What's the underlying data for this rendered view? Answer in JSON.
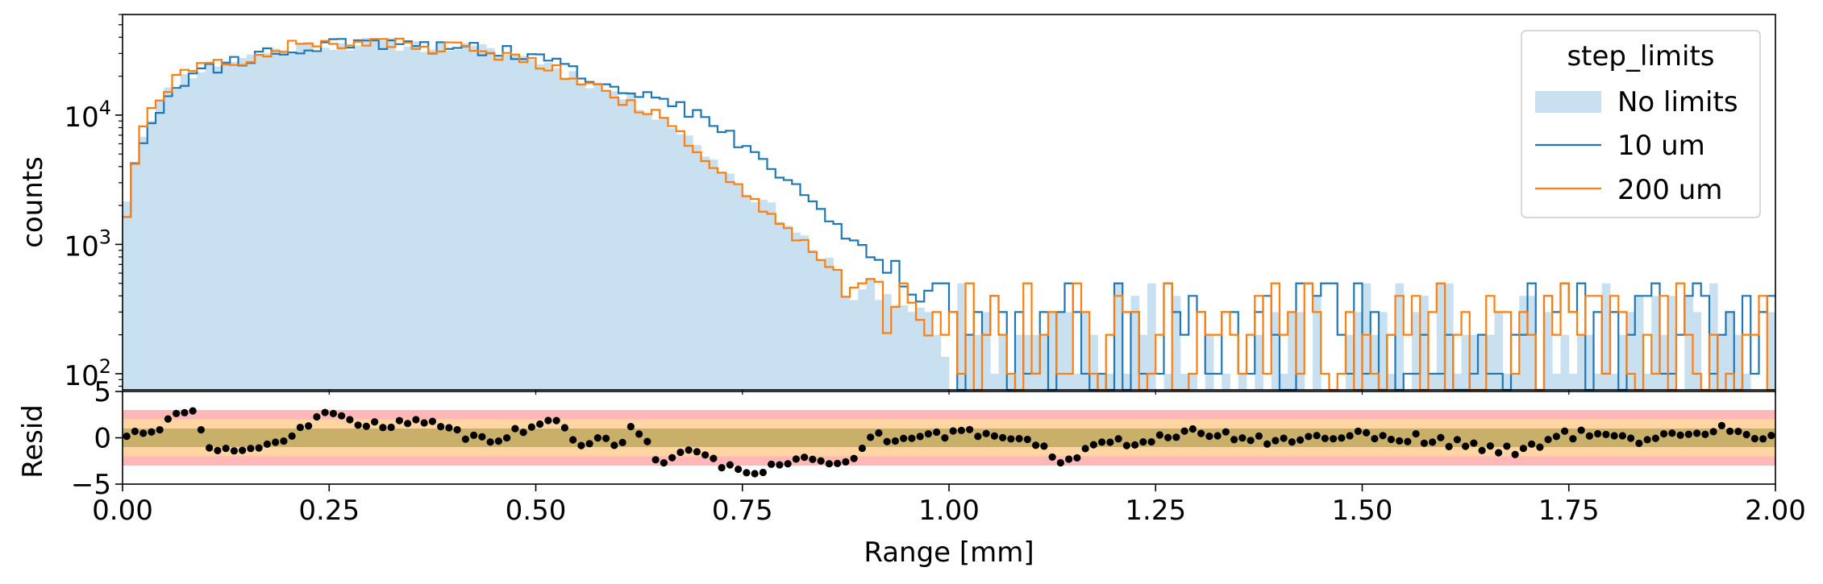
{
  "chart_data": [
    {
      "type": "histogram",
      "panel": "main",
      "ylabel": "counts",
      "yscale": "log",
      "ylim": [
        75,
        60000
      ],
      "xlim": [
        0,
        2
      ],
      "y_ticks": [
        {
          "value": 100,
          "base": "10",
          "exp": "2"
        },
        {
          "value": 1000,
          "base": "10",
          "exp": "3"
        },
        {
          "value": 10000,
          "base": "10",
          "exp": "4"
        }
      ],
      "legend": {
        "title": "step_limits",
        "position": "top-right"
      },
      "bin_width": 0.01,
      "series": [
        {
          "name": "No limits",
          "style": "filled",
          "color": "#c8e0f0",
          "profile": [
            [
              0,
              1500
            ],
            [
              0.01,
              3500
            ],
            [
              0.02,
              5500
            ],
            [
              0.03,
              9000
            ],
            [
              0.05,
              14000
            ],
            [
              0.07,
              19000
            ],
            [
              0.1,
              24000
            ],
            [
              0.15,
              28000
            ],
            [
              0.2,
              33000
            ],
            [
              0.25,
              35000
            ],
            [
              0.3,
              36000
            ],
            [
              0.35,
              35000
            ],
            [
              0.4,
              34000
            ],
            [
              0.45,
              31000
            ],
            [
              0.5,
              27000
            ],
            [
              0.55,
              20000
            ],
            [
              0.6,
              14500
            ],
            [
              0.65,
              10000
            ],
            [
              0.7,
              5500
            ],
            [
              0.75,
              2800
            ],
            [
              0.8,
              1600
            ],
            [
              0.85,
              750
            ],
            [
              0.9,
              430
            ],
            [
              0.95,
              300
            ],
            [
              1.0,
              200
            ],
            [
              2.0,
              160
            ]
          ]
        },
        {
          "name": "10 um",
          "style": "step",
          "color": "#1f77b4",
          "profile": [
            [
              0,
              1000
            ],
            [
              0.01,
              3000
            ],
            [
              0.02,
              5000
            ],
            [
              0.03,
              8500
            ],
            [
              0.05,
              13000
            ],
            [
              0.07,
              17000
            ],
            [
              0.1,
              22000
            ],
            [
              0.15,
              27000
            ],
            [
              0.2,
              33000
            ],
            [
              0.25,
              35000
            ],
            [
              0.3,
              35000
            ],
            [
              0.35,
              34000
            ],
            [
              0.4,
              33000
            ],
            [
              0.45,
              32000
            ],
            [
              0.5,
              28000
            ],
            [
              0.55,
              22000
            ],
            [
              0.6,
              17000
            ],
            [
              0.65,
              13500
            ],
            [
              0.7,
              9500
            ],
            [
              0.75,
              6000
            ],
            [
              0.8,
              3500
            ],
            [
              0.85,
              1700
            ],
            [
              0.9,
              900
            ],
            [
              0.95,
              450
            ],
            [
              1.0,
              250
            ],
            [
              2.0,
              170
            ]
          ]
        },
        {
          "name": "200 um",
          "style": "step",
          "color": "#ff7f0e",
          "profile": [
            [
              0,
              1000
            ],
            [
              0.01,
              3000
            ],
            [
              0.02,
              6000
            ],
            [
              0.03,
              9500
            ],
            [
              0.05,
              15000
            ],
            [
              0.07,
              20000
            ],
            [
              0.1,
              24000
            ],
            [
              0.15,
              28000
            ],
            [
              0.2,
              34000
            ],
            [
              0.25,
              36000
            ],
            [
              0.3,
              36000
            ],
            [
              0.35,
              35000
            ],
            [
              0.4,
              33000
            ],
            [
              0.45,
              30000
            ],
            [
              0.5,
              26000
            ],
            [
              0.55,
              20000
            ],
            [
              0.6,
              14000
            ],
            [
              0.65,
              9500
            ],
            [
              0.7,
              5000
            ],
            [
              0.75,
              2700
            ],
            [
              0.8,
              1500
            ],
            [
              0.85,
              750
            ],
            [
              0.9,
              420
            ],
            [
              0.95,
              280
            ],
            [
              1.0,
              200
            ],
            [
              2.0,
              160
            ]
          ]
        }
      ]
    },
    {
      "type": "scatter",
      "panel": "residual",
      "ylabel": "Resid",
      "xlabel": "Range [mm]",
      "ylim": [
        -5,
        5
      ],
      "xlim": [
        0,
        2
      ],
      "y_ticks": [
        "5",
        "0",
        "−5"
      ],
      "y_tick_values": [
        5,
        0,
        -5
      ],
      "x_ticks": [
        "0.00",
        "0.25",
        "0.50",
        "0.75",
        "1.00",
        "1.25",
        "1.50",
        "1.75",
        "2.00"
      ],
      "x_tick_values": [
        0,
        0.25,
        0.5,
        0.75,
        1.0,
        1.25,
        1.5,
        1.75,
        2.0
      ],
      "bands": [
        {
          "range": [
            -3,
            3
          ],
          "color": "#ffb7b7"
        },
        {
          "range": [
            -2,
            2
          ],
          "color": "#ffd6a3"
        },
        {
          "range": [
            -1,
            1
          ],
          "color": "#c8b06a"
        }
      ],
      "residual_profile": [
        [
          0,
          0.3
        ],
        [
          0.05,
          1.5
        ],
        [
          0.08,
          3.6
        ],
        [
          0.1,
          -0.5
        ],
        [
          0.15,
          -1.8
        ],
        [
          0.2,
          0
        ],
        [
          0.25,
          2.8
        ],
        [
          0.3,
          1.3
        ],
        [
          0.35,
          2.0
        ],
        [
          0.4,
          0.5
        ],
        [
          0.45,
          0
        ],
        [
          0.5,
          1.0
        ],
        [
          0.52,
          2.3
        ],
        [
          0.55,
          -0.3
        ],
        [
          0.6,
          -0.5
        ],
        [
          0.62,
          1.5
        ],
        [
          0.65,
          -2.5
        ],
        [
          0.7,
          -1.0
        ],
        [
          0.72,
          -3.0
        ],
        [
          0.76,
          -3.8
        ],
        [
          0.8,
          -2.5
        ],
        [
          0.85,
          -2.5
        ],
        [
          0.88,
          -2.8
        ],
        [
          0.9,
          0
        ],
        [
          1.0,
          0.5
        ],
        [
          1.1,
          0
        ],
        [
          1.13,
          -2.3
        ],
        [
          1.2,
          -0.5
        ],
        [
          1.3,
          0.5
        ],
        [
          1.4,
          -0.4
        ],
        [
          1.5,
          0.5
        ],
        [
          1.6,
          -0.4
        ],
        [
          1.68,
          -1.5
        ],
        [
          1.75,
          0.4
        ],
        [
          1.85,
          -0.2
        ],
        [
          1.93,
          1.0
        ],
        [
          2.0,
          0
        ]
      ]
    }
  ]
}
